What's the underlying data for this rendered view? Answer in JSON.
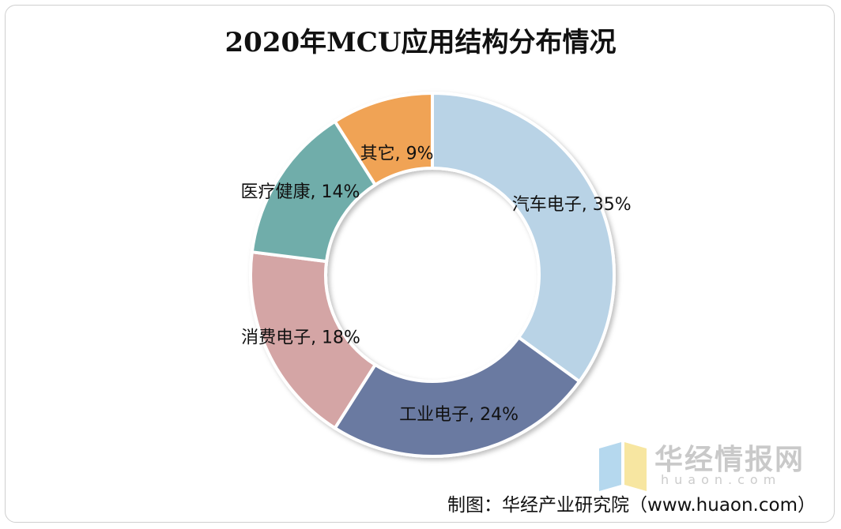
{
  "chart_data": {
    "type": "pie",
    "title": "2020年MCU应用结构分布情况",
    "categories": [
      "汽车电子",
      "工业电子",
      "消费电子",
      "医疗健康",
      "其它"
    ],
    "values": [
      35,
      24,
      18,
      14,
      9
    ],
    "labels": [
      "汽车电子, 35%",
      "工业电子, 24%",
      "消费电子, 18%",
      "医疗健康, 14%",
      "其它, 9%"
    ],
    "colors": [
      "#b9d3e6",
      "#6b7aa1",
      "#d4a5a5",
      "#6fadaa",
      "#f0a355"
    ],
    "donut": true
  },
  "watermark": {
    "name": "华经情报网",
    "site": "huaon.com"
  },
  "source": "制图：华经产业研究院（www.huaon.com）"
}
